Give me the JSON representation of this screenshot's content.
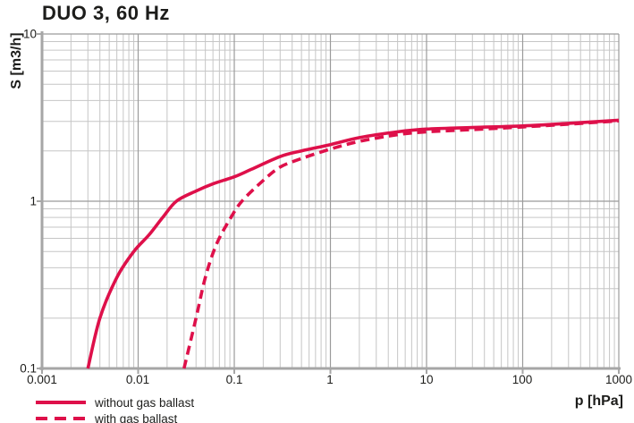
{
  "title": "DUO 3, 60 Hz",
  "chart_data": {
    "type": "line",
    "title": "DUO 3, 60 Hz",
    "xlabel": "p [hPa]",
    "ylabel": "S [m3/h]",
    "x_scale": "log",
    "y_scale": "log",
    "xlim": [
      0.001,
      1000
    ],
    "ylim": [
      0.1,
      10
    ],
    "x_ticks": [
      "0.001",
      "0.01",
      "0.1",
      "1",
      "10",
      "100",
      "1000"
    ],
    "y_ticks": [
      "10",
      "1",
      "0.1"
    ],
    "grid": true,
    "legend_position": "bottom-left",
    "colors": {
      "curve": "#de104a",
      "grid_minor": "#c6c6c6",
      "grid_major": "#9b9b9b",
      "spine": "#a6a6a6",
      "text": "#1d1d1b"
    },
    "series": [
      {
        "name": "without gas ballast",
        "style": "solid",
        "color": "#de104a",
        "points": [
          [
            0.003,
            0.1
          ],
          [
            0.004,
            0.2
          ],
          [
            0.006,
            0.35
          ],
          [
            0.009,
            0.5
          ],
          [
            0.013,
            0.63
          ],
          [
            0.018,
            0.8
          ],
          [
            0.025,
            1.0
          ],
          [
            0.04,
            1.15
          ],
          [
            0.06,
            1.27
          ],
          [
            0.1,
            1.4
          ],
          [
            0.15,
            1.55
          ],
          [
            0.3,
            1.85
          ],
          [
            0.5,
            2.0
          ],
          [
            1,
            2.18
          ],
          [
            2,
            2.4
          ],
          [
            5,
            2.6
          ],
          [
            10,
            2.7
          ],
          [
            30,
            2.76
          ],
          [
            100,
            2.82
          ],
          [
            300,
            2.92
          ],
          [
            1000,
            3.05
          ]
        ]
      },
      {
        "name": "with gas ballast",
        "style": "dashed",
        "color": "#de104a",
        "points": [
          [
            0.03,
            0.1
          ],
          [
            0.04,
            0.2
          ],
          [
            0.05,
            0.35
          ],
          [
            0.065,
            0.55
          ],
          [
            0.09,
            0.78
          ],
          [
            0.12,
            1.0
          ],
          [
            0.2,
            1.33
          ],
          [
            0.3,
            1.6
          ],
          [
            0.5,
            1.8
          ],
          [
            1,
            2.05
          ],
          [
            2,
            2.28
          ],
          [
            5,
            2.5
          ],
          [
            10,
            2.6
          ],
          [
            30,
            2.68
          ],
          [
            100,
            2.78
          ],
          [
            300,
            2.89
          ],
          [
            1000,
            3.02
          ]
        ]
      }
    ]
  }
}
